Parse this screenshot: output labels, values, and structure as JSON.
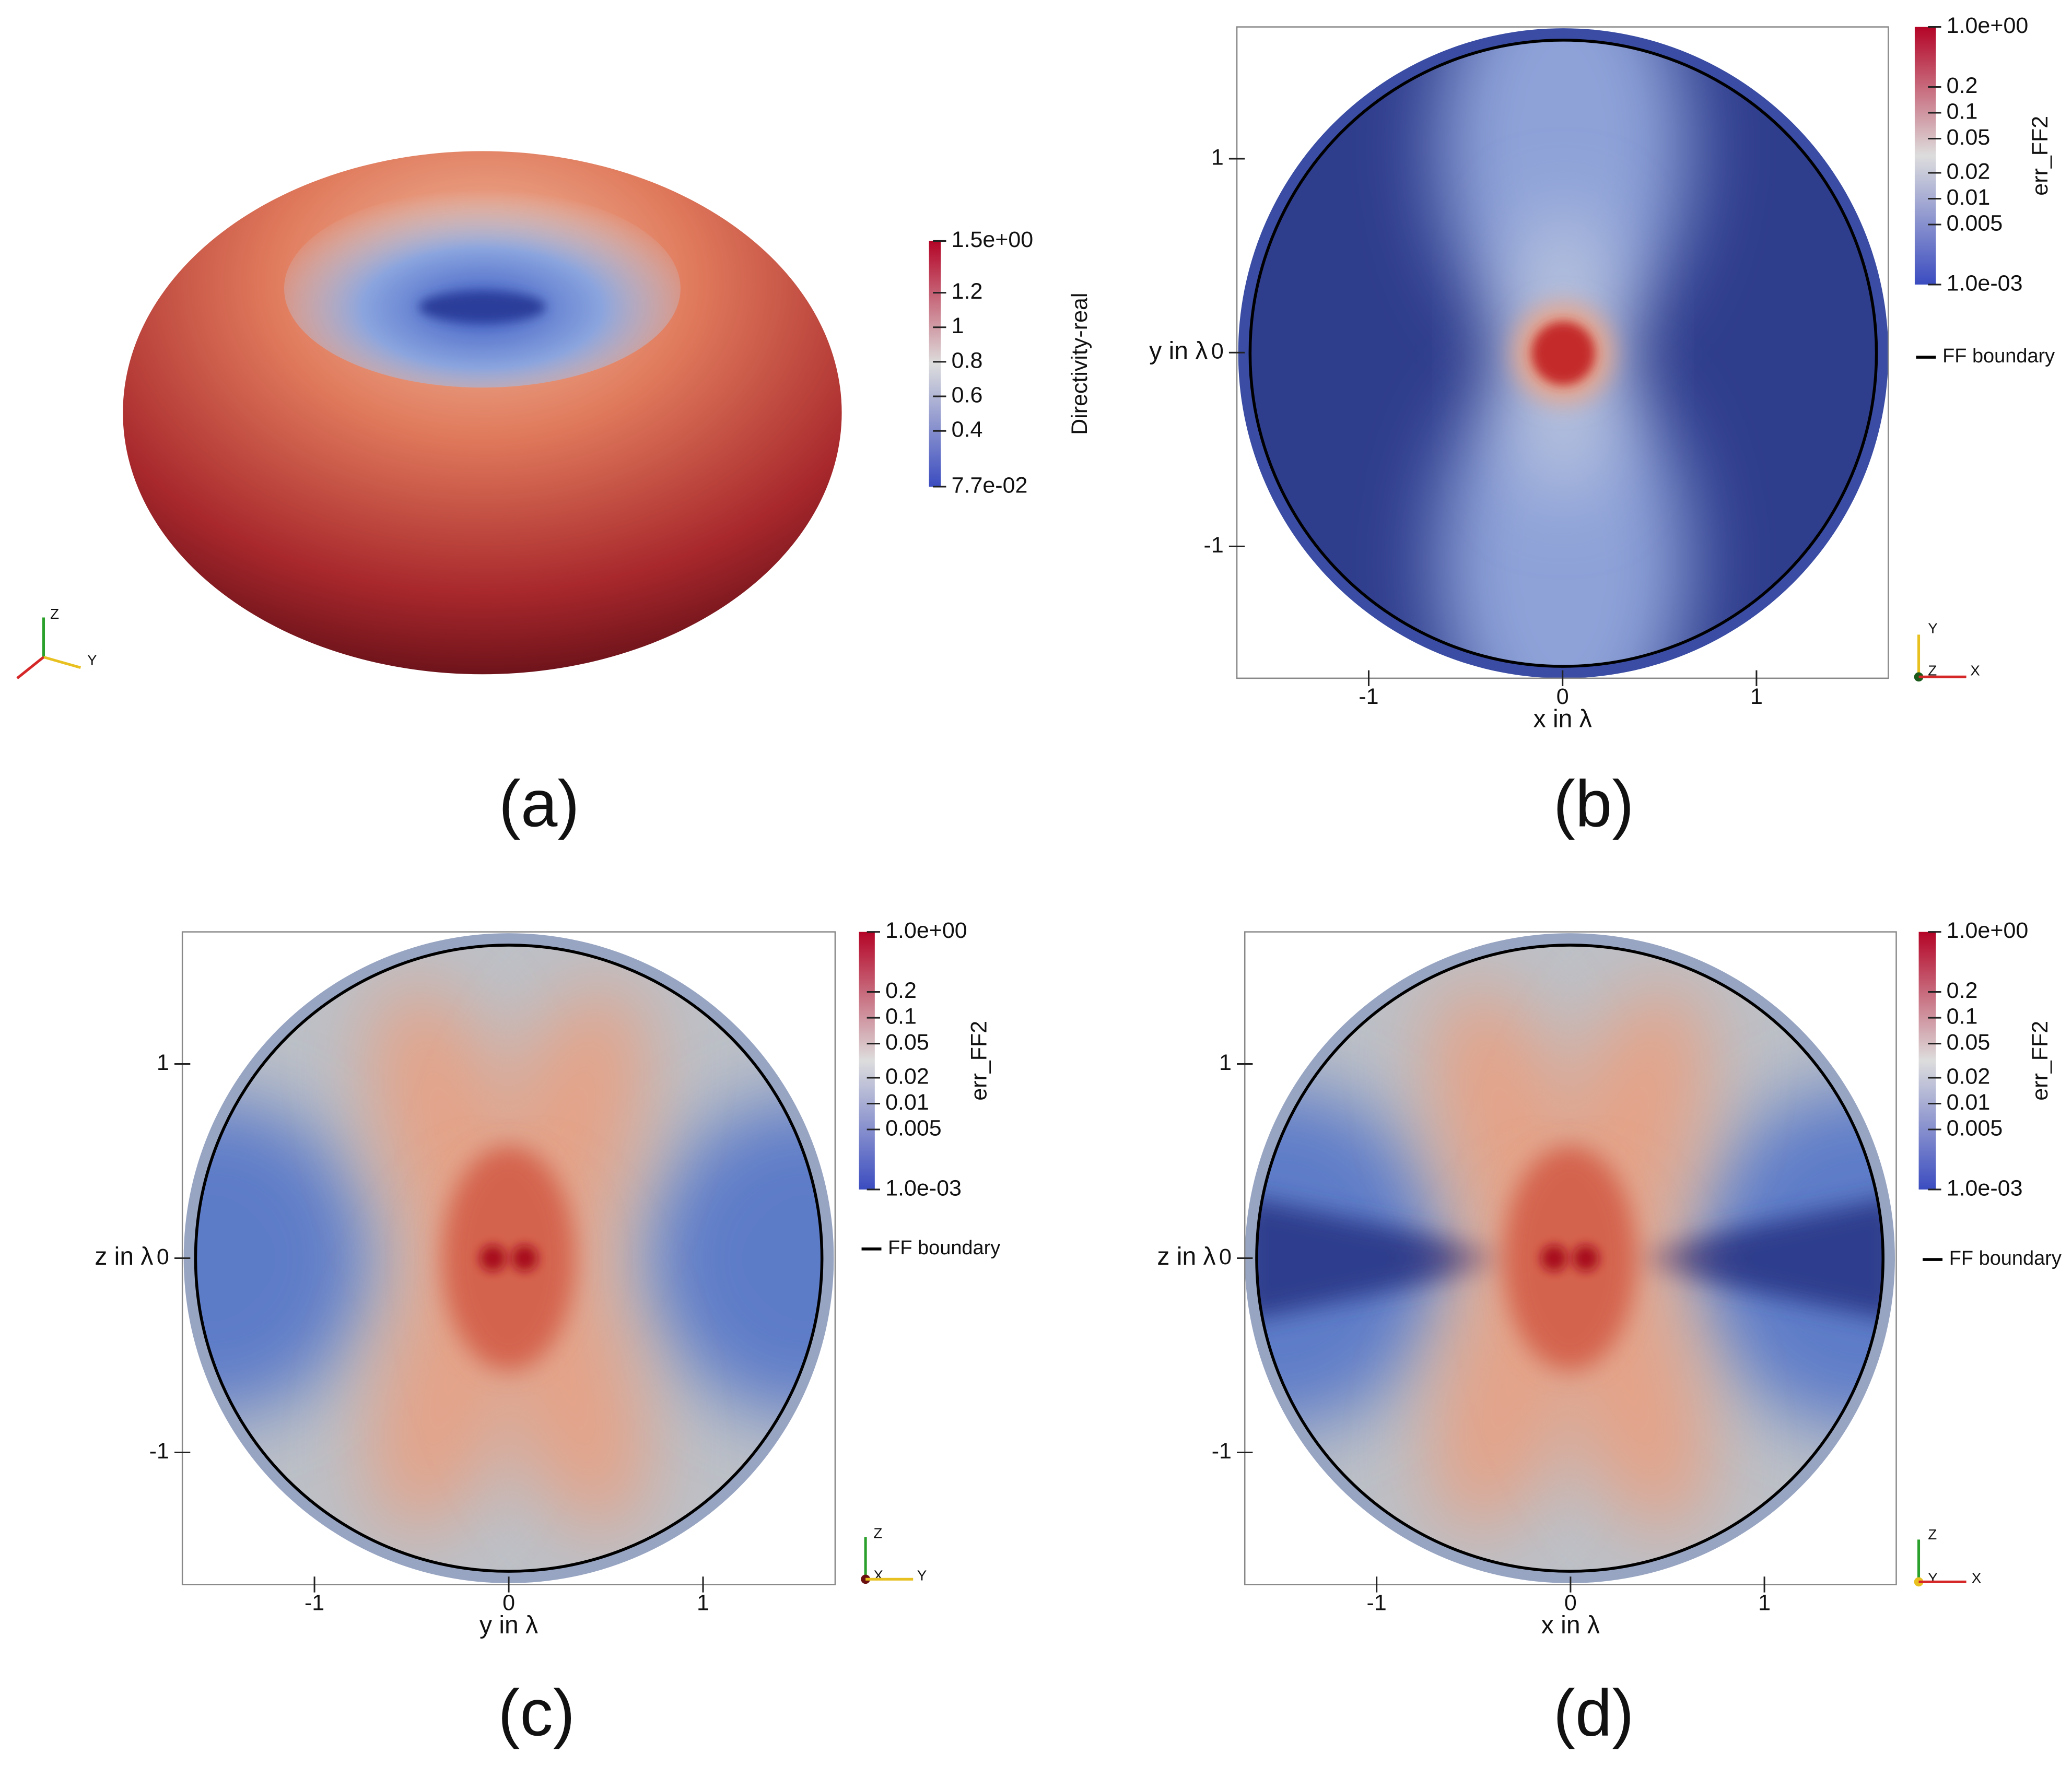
{
  "chart_data": [
    {
      "type": "surface",
      "label": "(a)",
      "colorbar": {
        "title": "Directivity-real",
        "lim": [
          0.077,
          1.5
        ],
        "log_scale": false,
        "colors": [
          "#3b4cc0",
          "#dddddd",
          "#b40426"
        ],
        "ticks": [
          {
            "value": 1.5,
            "label": "1.5e+00"
          },
          1.2,
          1,
          0.8,
          0.6,
          0.4,
          {
            "value": 0.077,
            "label": "7.7e-02"
          }
        ]
      },
      "triad": [
        "Z",
        "Y"
      ]
    },
    {
      "type": "map",
      "label": "(b)",
      "xlabel": "x in λ",
      "ylabel": "y in λ",
      "xlim": [
        -1.68,
        1.68
      ],
      "ylim": [
        -1.68,
        1.68
      ],
      "xticks": [
        -1,
        0,
        1
      ],
      "yticks": [
        -1,
        0,
        1
      ],
      "colorbar": {
        "title": "err_FF2",
        "lim": [
          0.001,
          1
        ],
        "log_scale": true,
        "colors": [
          "#3b4cc0",
          "#dddddd",
          "#b40426"
        ],
        "ticks": [
          {
            "value": 1,
            "label": "1.0e+00"
          },
          0.2,
          0.1,
          0.05,
          0.02,
          0.01,
          0.005,
          {
            "value": 0.001,
            "label": "1.0e-03"
          }
        ]
      },
      "legend": "FF boundary",
      "legend_color": "#000000",
      "triad": [
        "Y",
        "Z",
        "X"
      ]
    },
    {
      "type": "map",
      "label": "(c)",
      "xlabel": "y in λ",
      "ylabel": "z in λ",
      "xlim": [
        -1.68,
        1.68
      ],
      "ylim": [
        -1.68,
        1.68
      ],
      "xticks": [
        -1,
        0,
        1
      ],
      "yticks": [
        -1,
        0,
        1
      ],
      "colorbar": {
        "title": "err_FF2",
        "lim": [
          0.001,
          1
        ],
        "log_scale": true,
        "colors": [
          "#3b4cc0",
          "#dddddd",
          "#b40426"
        ],
        "ticks": [
          {
            "value": 1,
            "label": "1.0e+00"
          },
          0.2,
          0.1,
          0.05,
          0.02,
          0.01,
          0.005,
          {
            "value": 0.001,
            "label": "1.0e-03"
          }
        ]
      },
      "legend": "FF boundary",
      "legend_color": "#000000",
      "triad": [
        "Z",
        "X",
        "Y"
      ]
    },
    {
      "type": "map",
      "label": "(d)",
      "xlabel": "x in λ",
      "ylabel": "z in λ",
      "xlim": [
        -1.68,
        1.68
      ],
      "ylim": [
        -1.68,
        1.68
      ],
      "xticks": [
        -1,
        0,
        1
      ],
      "yticks": [
        -1,
        0,
        1
      ],
      "colorbar": {
        "title": "err_FF2",
        "lim": [
          0.001,
          1
        ],
        "log_scale": true,
        "colors": [
          "#3b4cc0",
          "#dddddd",
          "#b40426"
        ],
        "ticks": [
          {
            "value": 1,
            "label": "1.0e+00"
          },
          0.2,
          0.1,
          0.05,
          0.02,
          0.01,
          0.005,
          {
            "value": 0.001,
            "label": "1.0e-03"
          }
        ]
      },
      "legend": "FF boundary",
      "legend_color": "#000000",
      "triad": [
        "Z",
        "Y",
        "X"
      ]
    }
  ]
}
